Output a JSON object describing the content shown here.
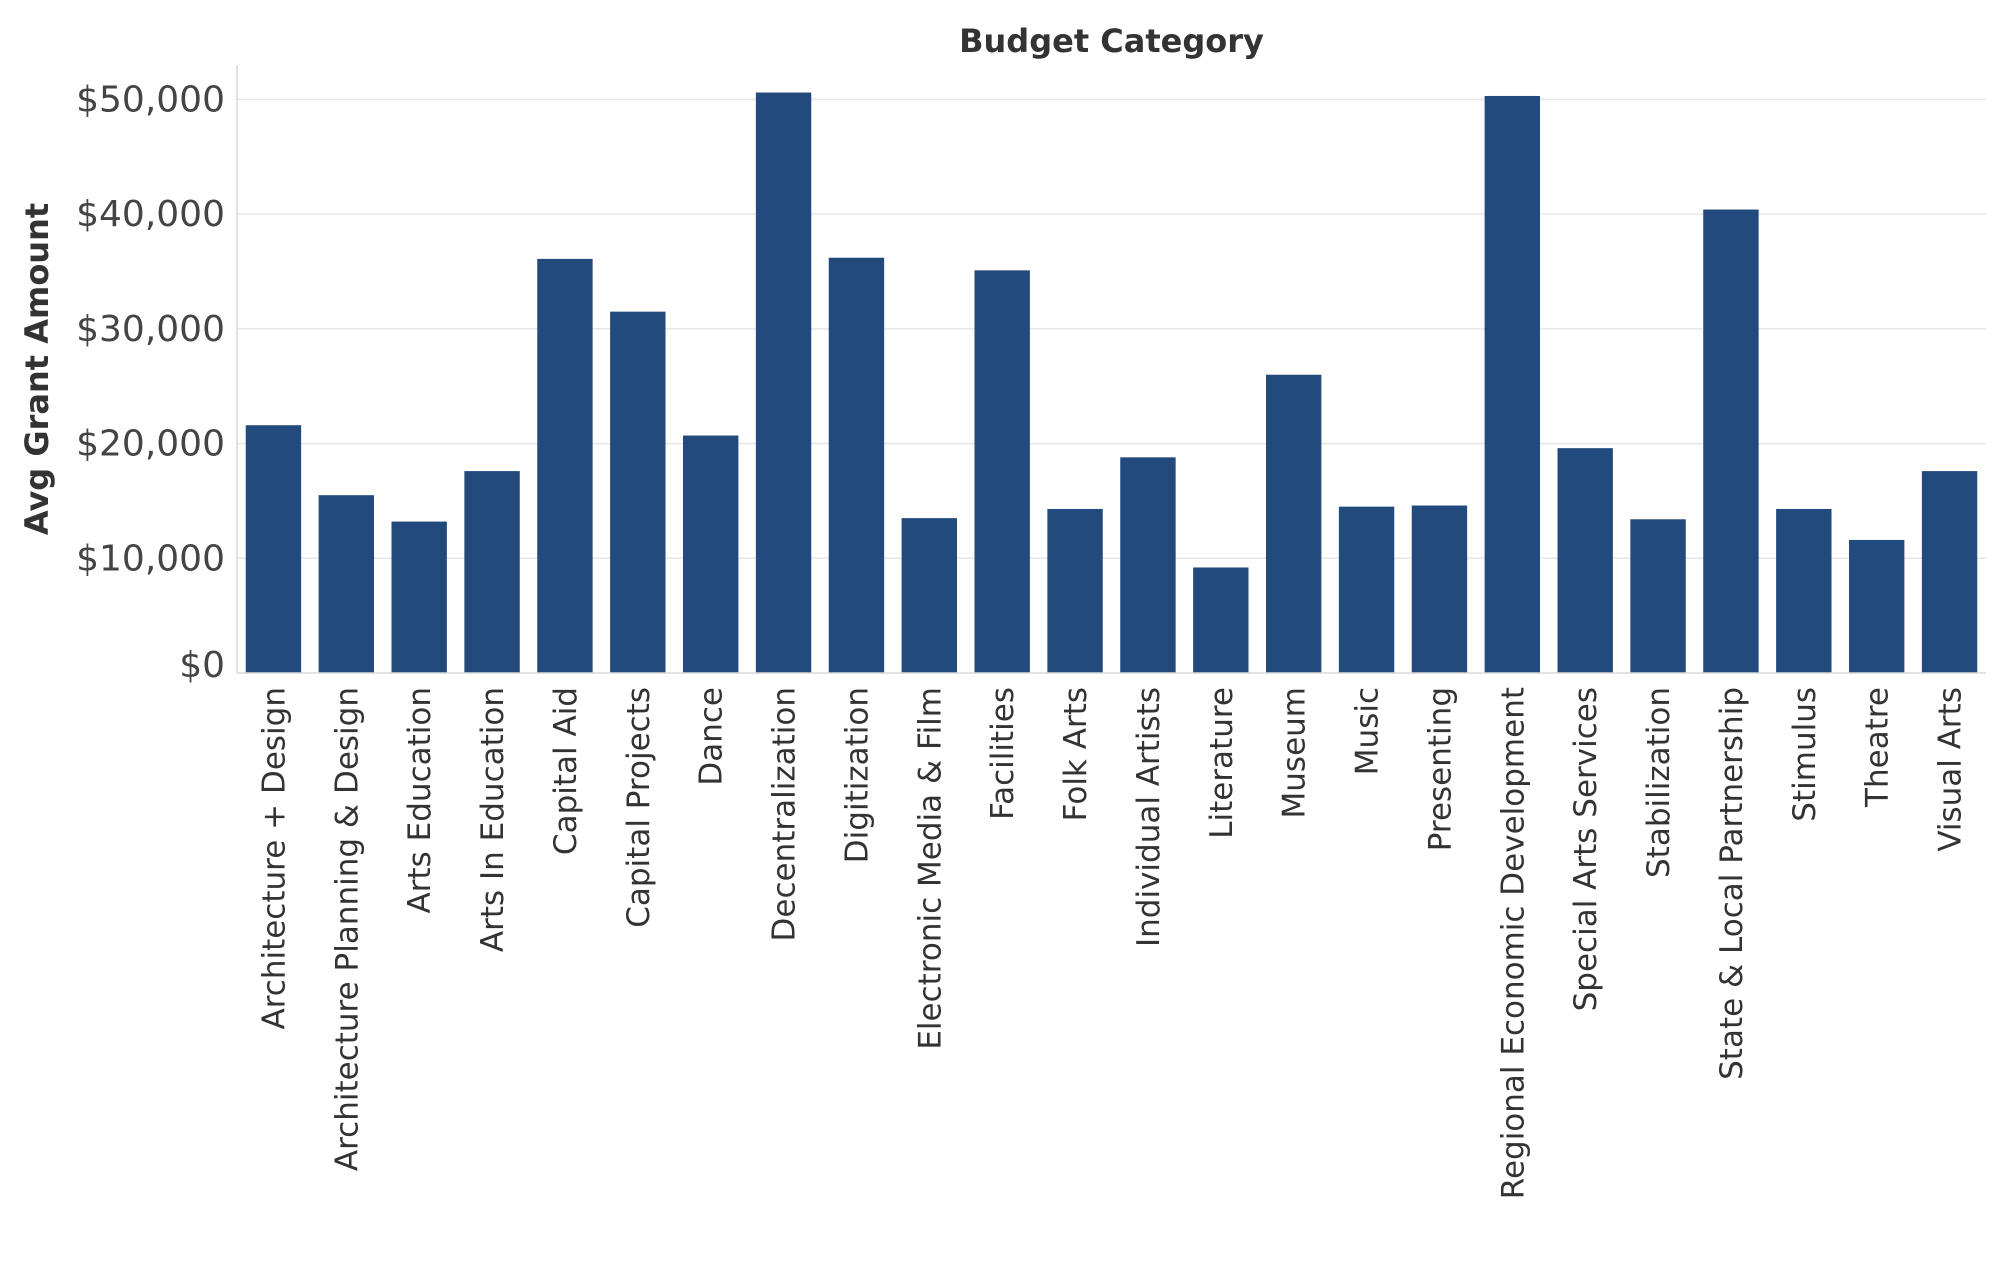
{
  "chart_data": {
    "type": "bar",
    "title": "Budget Category",
    "ylabel": "Avg Grant Amount",
    "xlabel": "",
    "ylim": [
      0,
      53000
    ],
    "yticks": [
      0,
      10000,
      20000,
      30000,
      40000,
      50000
    ],
    "ytick_labels": [
      "$0",
      "$10,000",
      "$20,000",
      "$30,000",
      "$40,000",
      "$50,000"
    ],
    "grid": true,
    "bar_color": "#234a7c",
    "categories": [
      "Architecture + Design",
      "Architecture Planning & Design",
      "Arts Education",
      "Arts In Education",
      "Capital Aid",
      "Capital Projects",
      "Dance",
      "Decentralization",
      "Digitization",
      "Electronic Media & Film",
      "Facilities",
      "Folk Arts",
      "Individual Artists",
      "Literature",
      "Museum",
      "Music",
      "Presenting",
      "Regional Economic Development",
      "Special Arts Services",
      "Stabilization",
      "State & Local Partnership",
      "Stimulus",
      "Theatre",
      "Visual Arts"
    ],
    "values": [
      21600,
      15500,
      13200,
      17600,
      36100,
      31500,
      20700,
      50600,
      36200,
      13500,
      35100,
      14300,
      18800,
      9200,
      26000,
      14500,
      14600,
      50300,
      19600,
      13400,
      40400,
      14300,
      11600,
      17600
    ]
  }
}
